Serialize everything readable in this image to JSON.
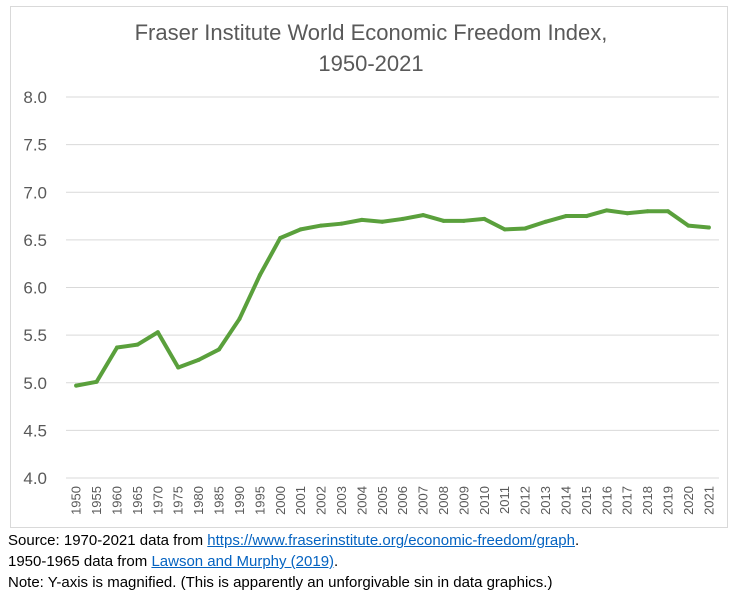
{
  "chart_data": {
    "type": "line",
    "title": "Fraser Institute World Economic Freedom Index,",
    "subtitle": "1950-2021",
    "xlabel": "",
    "ylabel": "",
    "ylim": [
      4.0,
      8.0
    ],
    "yticks": [
      "4.0",
      "4.5",
      "5.0",
      "5.5",
      "6.0",
      "6.5",
      "7.0",
      "7.5",
      "8.0"
    ],
    "grid": true,
    "line_color": "#5aa03c",
    "categories": [
      "1950",
      "1955",
      "1960",
      "1965",
      "1970",
      "1975",
      "1980",
      "1985",
      "1990",
      "1995",
      "2000",
      "2001",
      "2002",
      "2003",
      "2004",
      "2005",
      "2006",
      "2007",
      "2008",
      "2009",
      "2010",
      "2011",
      "2012",
      "2013",
      "2014",
      "2015",
      "2016",
      "2017",
      "2018",
      "2019",
      "2020",
      "2021"
    ],
    "series": [
      {
        "values": [
          4.97,
          5.01,
          5.37,
          5.4,
          5.53,
          5.16,
          5.24,
          5.35,
          5.67,
          6.13,
          6.52,
          6.61,
          6.65,
          6.67,
          6.71,
          6.69,
          6.72,
          6.76,
          6.7,
          6.7,
          6.72,
          6.61,
          6.62,
          6.69,
          6.75,
          6.75,
          6.81,
          6.78,
          6.8,
          6.8,
          6.65,
          6.63
        ]
      }
    ]
  },
  "notes": {
    "line1_prefix": "Source: 1970-2021 data from ",
    "line1_link": "https://www.fraserinstitute.org/economic-freedom/graph",
    "line1_suffix": ".",
    "line2_prefix": "1950-1965 data from ",
    "line2_link": "Lawson and Murphy (2019)",
    "line2_suffix": ".",
    "line3": "Note: Y-axis is magnified. (This is apparently an unforgivable sin in data graphics.)"
  }
}
